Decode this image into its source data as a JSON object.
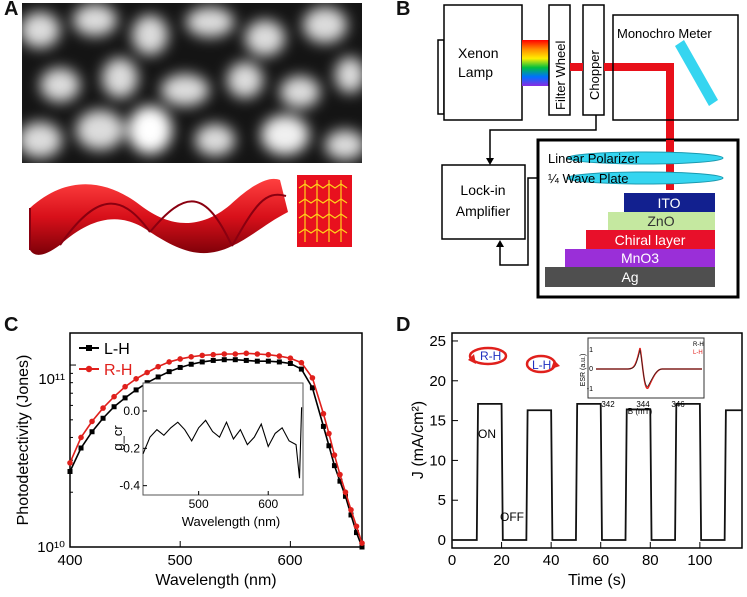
{
  "panels": {
    "a": {
      "label": "A"
    },
    "b": {
      "label": "B"
    },
    "c": {
      "label": "C"
    },
    "d": {
      "label": "D"
    }
  },
  "setup": {
    "xenon_lamp": "Xenon Lamp",
    "filter_wheel": "Filter Wheel",
    "chopper": "Chopper",
    "monochro_meter": "Monochro Meter",
    "linear_polarizer": "Linear Polarizer",
    "wave_plate": "¼ Wave Plate",
    "lockin_line1": "Lock-in",
    "lockin_line2": "Amplifier",
    "layers": [
      {
        "name": "ITO",
        "color": "#12208f",
        "text_color": "#ffffff"
      },
      {
        "name": "ZnO",
        "color": "#c5e8a0",
        "text_color": "#333333"
      },
      {
        "name": "Chiral layer",
        "color": "#e8102a",
        "text_color": "#ffffff"
      },
      {
        "name": "MnO3",
        "color": "#9a2fd8",
        "text_color": "#ffffff"
      },
      {
        "name": "Ag",
        "color": "#4f4f4f",
        "text_color": "#ffffff"
      }
    ]
  },
  "chart_data": [
    {
      "type": "line",
      "panel": "C",
      "xlabel": "Wavelength (nm)",
      "ylabel": "Photodetectivity (Jones)",
      "yscale": "log",
      "xlim": [
        400,
        665
      ],
      "ylim": [
        10000000000.0,
        150000000000.0
      ],
      "x_ticks": [
        "400",
        "500",
        "600"
      ],
      "y_ticks": [
        "10¹⁰",
        "10¹¹"
      ],
      "series": [
        {
          "name": "L-H",
          "color": "#000000",
          "x": [
            400,
            410,
            420,
            430,
            440,
            450,
            460,
            470,
            480,
            490,
            500,
            510,
            520,
            530,
            540,
            550,
            560,
            570,
            580,
            590,
            600,
            610,
            620,
            630,
            635,
            640,
            645,
            650,
            655,
            660,
            665
          ],
          "y": [
            26000000000.0,
            35000000000.0,
            43000000000.0,
            51000000000.0,
            59000000000.0,
            66000000000.0,
            73000000000.0,
            80000000000.0,
            86000000000.0,
            92000000000.0,
            97000000000.0,
            101000000000.0,
            104000000000.0,
            106000000000.0,
            107000000000.0,
            107000000000.0,
            106000000000.0,
            105000000000.0,
            105000000000.0,
            104000000000.0,
            102000000000.0,
            95000000000.0,
            75000000000.0,
            46000000000.0,
            36000000000.0,
            28000000000.0,
            23000000000.0,
            19000000000.0,
            15000000000.0,
            12000000000.0,
            10000000000.0
          ]
        },
        {
          "name": "R-H",
          "color": "#e0201c",
          "x": [
            400,
            410,
            420,
            430,
            440,
            450,
            460,
            470,
            480,
            490,
            500,
            510,
            520,
            530,
            540,
            550,
            560,
            570,
            580,
            590,
            600,
            610,
            620,
            630,
            635,
            640,
            645,
            650,
            655,
            660,
            665
          ],
          "y": [
            29000000000.0,
            40000000000.0,
            49000000000.0,
            58000000000.0,
            67000000000.0,
            76000000000.0,
            84000000000.0,
            91000000000.0,
            98000000000.0,
            104000000000.0,
            108000000000.0,
            111000000000.0,
            113000000000.0,
            114000000000.0,
            115000000000.0,
            115000000000.0,
            116000000000.0,
            115000000000.0,
            114000000000.0,
            112000000000.0,
            109000000000.0,
            103000000000.0,
            85000000000.0,
            54000000000.0,
            42000000000.0,
            32000000000.0,
            25000000000.0,
            20000000000.0,
            16000000000.0,
            13000000000.0,
            10500000000.0
          ]
        }
      ],
      "inset": {
        "xlabel": "Wavelength (nm)",
        "ylabel": "g_cr",
        "xlim": [
          420,
          650
        ],
        "ylim": [
          -0.45,
          0.15
        ],
        "x_ticks": [
          500,
          600
        ],
        "y_ticks": [
          0.0,
          -0.2,
          -0.4
        ],
        "x": [
          420,
          430,
          440,
          450,
          460,
          470,
          480,
          490,
          500,
          510,
          520,
          530,
          540,
          550,
          560,
          570,
          580,
          590,
          600,
          610,
          620,
          630,
          640,
          645,
          648
        ],
        "y": [
          -0.23,
          -0.14,
          -0.1,
          -0.13,
          -0.09,
          -0.06,
          -0.1,
          -0.16,
          -0.09,
          -0.05,
          -0.11,
          -0.14,
          -0.06,
          -0.15,
          -0.1,
          -0.18,
          -0.14,
          -0.07,
          -0.19,
          -0.12,
          -0.09,
          -0.16,
          -0.18,
          -0.36,
          0.02
        ]
      }
    },
    {
      "type": "line",
      "panel": "D",
      "xlabel": "Time (s)",
      "ylabel": "J (mA/cm²)",
      "xlim": [
        0,
        117
      ],
      "ylim": [
        -1,
        26
      ],
      "x_ticks": [
        0,
        20,
        40,
        60,
        80,
        100
      ],
      "y_ticks": [
        0,
        5,
        10,
        15,
        20,
        25
      ],
      "series": [
        {
          "name": "photocurrent",
          "color": "#111111",
          "x": [
            0,
            10,
            10.5,
            20,
            20.5,
            30,
            30.5,
            40,
            40.5,
            50,
            50.5,
            60,
            60.5,
            70,
            70.5,
            80,
            80.5,
            90,
            90.5,
            100,
            100.5,
            110,
            110.5,
            117
          ],
          "y": [
            0,
            0,
            17.1,
            17.1,
            0,
            0,
            16.3,
            16.3,
            0,
            0,
            17.1,
            17.1,
            0,
            0,
            16.4,
            16.4,
            0,
            0,
            17.1,
            17.1,
            0,
            0,
            16.3,
            16.3
          ]
        }
      ],
      "annotations": [
        "ON",
        "OFF",
        "R-H",
        "L-H"
      ],
      "inset": {
        "xlabel": "B (mT)",
        "ylabel": "ESR (a.u.)",
        "x_ticks": [
          342,
          344,
          346
        ],
        "y_ticks": [
          1,
          0,
          -1
        ],
        "legend": [
          "R-H",
          "L-H"
        ]
      }
    }
  ]
}
